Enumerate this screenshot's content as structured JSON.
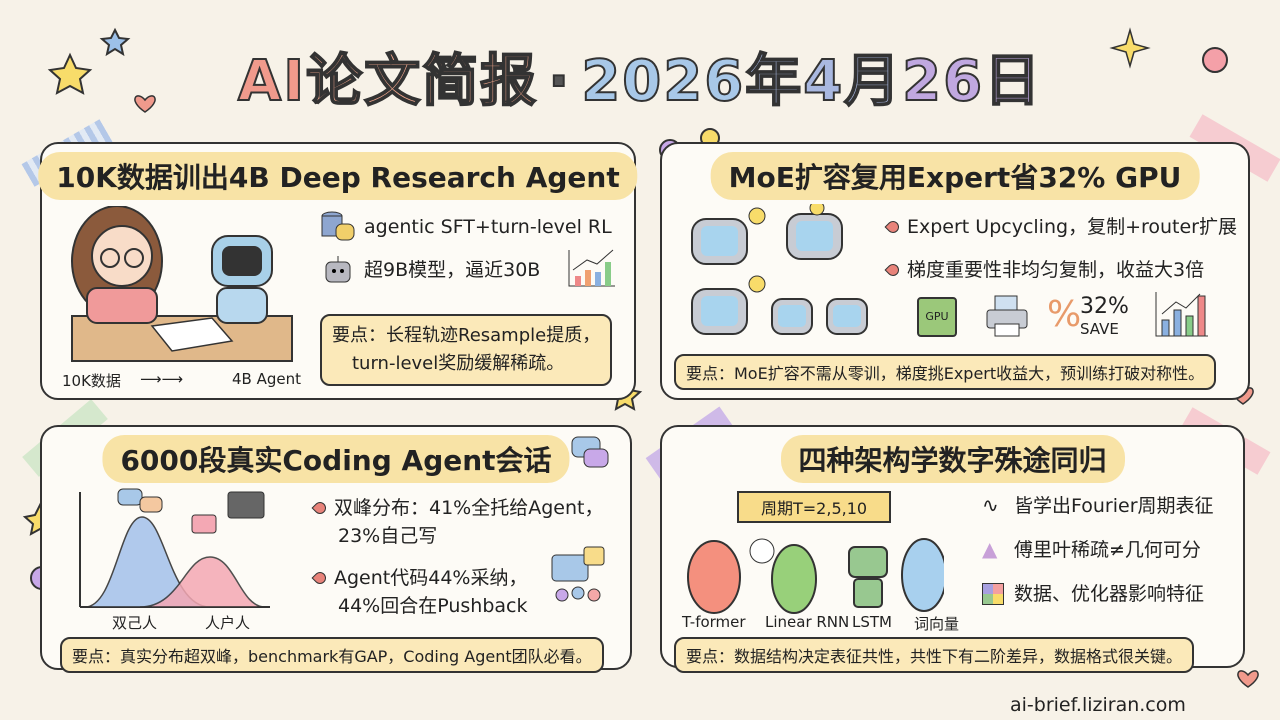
{
  "header": {
    "title_parts": [
      "AI",
      "论文",
      "简报",
      "·",
      "2026",
      "年4月",
      "26日"
    ],
    "title_colors": [
      "#f09a8c",
      "#f4a98f",
      "#f0a58a",
      "#555",
      "#a8c8e8",
      "#a9b8e0",
      "#c0a8e0"
    ]
  },
  "panels": [
    {
      "title": "10K数据训出4B Deep Research Agent",
      "bullets": [
        "agentic SFT+turn-level RL",
        "超9B模型，逼近30B"
      ],
      "caption_from": "10K数据",
      "caption_to": "4B Agent",
      "key_lines": [
        "要点：长程轨迹Resample提质，",
        "turn-level奖励缓解稀疏。"
      ],
      "icons": [
        "database-icon",
        "robot-icon",
        "bar-chart-icon"
      ]
    },
    {
      "title": "MoE扩容复用Expert省32% GPU",
      "bullets": [
        "Expert Upcycling，复制+router扩展",
        "梯度重要性非均匀复制，收益大3倍"
      ],
      "gpu_label": "GPU",
      "save_pct": "32%",
      "save_label": "SAVE",
      "key": "要点：MoE扩容不需从零训，梯度挑Expert收益大，预训练打破对称性。"
    },
    {
      "title": "6000段真实Coding Agent会话",
      "bullets": [
        "双峰分布：41%全托给Agent，",
        "23%自己写",
        "Agent代码44%采纳，",
        "44%回合在Pushback"
      ],
      "axis_labels": [
        "双己人",
        "人户人"
      ],
      "key": "要点：真实分布超双峰，benchmark有GAP，Coding Agent团队必看。"
    },
    {
      "title": "四种架构学数字殊途同归",
      "banner": "周期T=2,5,10",
      "characters": [
        "T-former",
        "Linear RNN",
        "LSTM",
        "词向量"
      ],
      "bullets": [
        "皆学出Fourier周期表征",
        "傅里叶稀疏≠几何可分",
        "数据、优化器影响特征"
      ],
      "key": "要点：数据结构决定表征共性，共性下有二阶差异，数据格式很关键。"
    }
  ],
  "footer": {
    "url": "ai-brief.liziran.com"
  }
}
